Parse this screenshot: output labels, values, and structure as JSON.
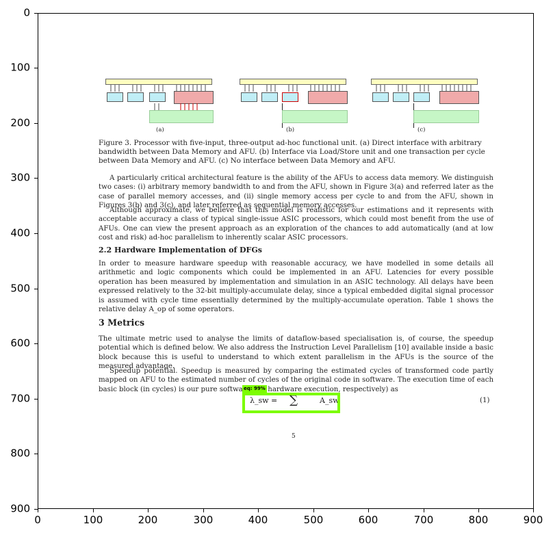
{
  "axes": {
    "x_ticks": [
      "0",
      "100",
      "200",
      "300",
      "400",
      "500",
      "600",
      "700",
      "800",
      "900"
    ],
    "y_ticks": [
      "0",
      "100",
      "200",
      "300",
      "400",
      "500",
      "600",
      "700",
      "800",
      "900"
    ]
  },
  "figure": {
    "panel_a_tag": "(a)",
    "panel_b_tag": "(b)",
    "panel_c_tag": "(c)"
  },
  "caption": "Figure 3. Processor with five-input, three-output ad-hoc functional unit. (a) Direct interface with arbitrary bandwidth between Data Memory and AFU. (b) Interface via Load/Store unit and one transaction per cycle between Data Memory and AFU. (c) No interface between Data Memory and AFU.",
  "para1": "A particularly critical architectural feature is the ability of the AFUs to access data memory. We distinguish two cases: (i) arbitrary memory bandwidth to and from the AFU, shown in Figure 3(a) and referred later as the case of parallel memory accesses, and (ii) single memory access per cycle to and from the AFU, shown in Figures 3(b) and 3(c), and later referred as sequential memory accesses.",
  "para2": "Although approximate, we believe that this model is realistic for our estimations and it represents with acceptable accuracy a class of typical single-issue ASIC processors, which could most benefit from the use of AFUs. One can view the present approach as an exploration of the chances to add automatically (and at low cost and risk) ad-hoc parallelism to inherently scalar ASIC processors.",
  "subsection_heading": "2.2   Hardware Implementation of DFGs",
  "para3": "In order to measure hardware speedup with reasonable accuracy, we have modelled in some details all arithmetic and logic components which could be implemented in an AFU. Latencies for every possible operation has been measured by implementation and simulation in an ASIC technology. All delays have been expressed relatively to the 32-bit multiply-accumulate delay, since a typical embedded digital signal processor is assumed with cycle time essentially determined by the multiply-accumulate operation. Table 1 shows the relative delay A_op of some operators.",
  "section_heading": "3   Metrics",
  "para4": "The ultimate metric used to analyse the limits of dataflow-based specialisation is, of course, the speedup potential which is defined below. We also address the Instruction Level Parallelism [10] available inside a basic block because this is useful to understand to which extent parallelism in the AFUs is the source of the measured advantage.",
  "para5": "Speedup potential. Speedup is measured by comparing the estimated cycles of transformed code partly mapped on AFU to the estimated number of cycles of the original code in software. The execution time of each basic block (in cycles) is our pure software and hardware execution, respectively) as",
  "equation": {
    "lhs": "λ_sw =",
    "sum": "∑",
    "rhs": "A_sw",
    "number": "(1)"
  },
  "page_number": "5",
  "detection": {
    "label": "eq: 99%"
  }
}
